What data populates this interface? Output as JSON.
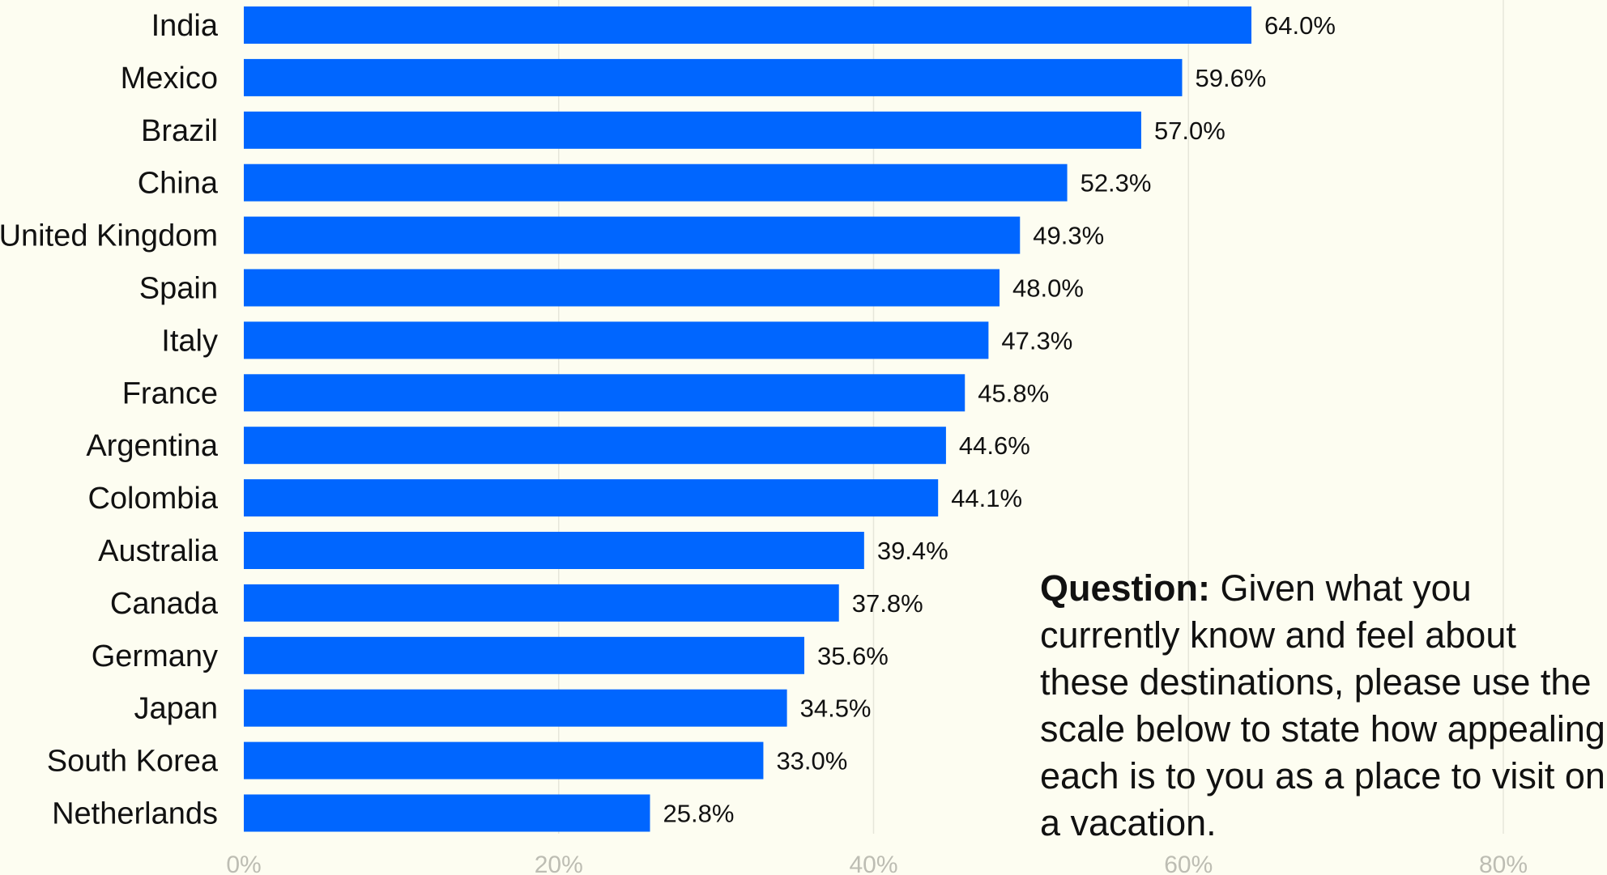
{
  "chart_data": {
    "type": "bar",
    "orientation": "horizontal",
    "categories": [
      "India",
      "Mexico",
      "Brazil",
      "China",
      "United Kingdom",
      "Spain",
      "Italy",
      "France",
      "Argentina",
      "Colombia",
      "Australia",
      "Canada",
      "Germany",
      "Japan",
      "South Korea",
      "Netherlands"
    ],
    "values": [
      64.0,
      59.6,
      57.0,
      52.3,
      49.3,
      48.0,
      47.3,
      45.8,
      44.6,
      44.1,
      39.4,
      37.8,
      35.6,
      34.5,
      33.0,
      25.8
    ],
    "value_labels": [
      "64.0%",
      "59.6%",
      "57.0%",
      "52.3%",
      "49.3%",
      "48.0%",
      "47.3%",
      "45.8%",
      "44.6%",
      "44.1%",
      "39.4%",
      "37.8%",
      "35.6%",
      "34.5%",
      "33.0%",
      "25.8%"
    ],
    "x_ticks": [
      {
        "value": 0,
        "label": "0%"
      },
      {
        "value": 20,
        "label": "20%"
      },
      {
        "value": 40,
        "label": "40%"
      },
      {
        "value": 60,
        "label": "60%"
      },
      {
        "value": 80,
        "label": "80%"
      }
    ],
    "xlim": [
      0,
      80
    ],
    "grid": true,
    "bar_color": "#0066ff",
    "annotation": {
      "heading": "Question:",
      "text": "Given what you currently know and feel about these destinations, please use the scale below to state how appealing each is to you as a place to visit on a vacation."
    }
  }
}
